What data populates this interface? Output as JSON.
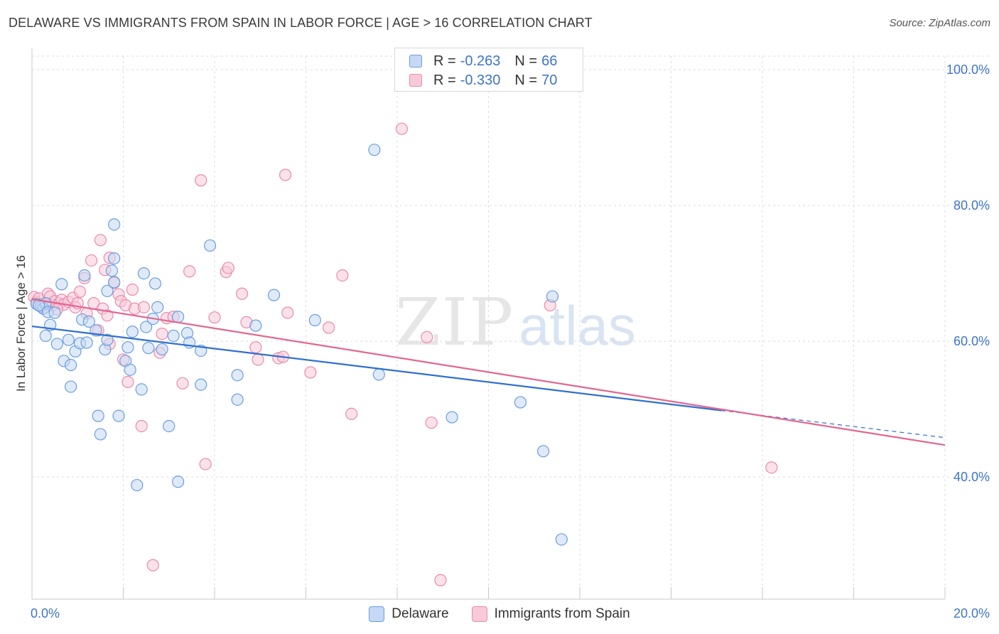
{
  "header": {
    "title": "DELAWARE VS IMMIGRANTS FROM SPAIN IN LABOR FORCE | AGE > 16 CORRELATION CHART",
    "source": "Source: ZipAtlas.com"
  },
  "watermark": {
    "zip": "ZIP",
    "atlas": "atlas"
  },
  "legend_top": {
    "rows": [
      {
        "r_label": "R =",
        "r_value": "-0.263",
        "n_label": "N =",
        "n_value": "66"
      },
      {
        "r_label": "R =",
        "r_value": "-0.330",
        "n_label": "N =",
        "n_value": "70"
      }
    ]
  },
  "legend_bottom": {
    "items": [
      "Delaware",
      "Immigrants from Spain"
    ]
  },
  "colors": {
    "blue_fill": "#c5d9f4",
    "blue_stroke": "#6a9de0",
    "blue_line": "#2f6fd1",
    "pink_fill": "#f8cad9",
    "pink_stroke": "#eb8aab",
    "pink_line": "#e2668f",
    "grid": "#dcdcdc",
    "tick_text": "#3d74c7"
  },
  "chart_data": {
    "type": "scatter",
    "title": "DELAWARE VS IMMIGRANTS FROM SPAIN IN LABOR FORCE | AGE > 16 CORRELATION CHART",
    "xlabel": "",
    "ylabel": "In Labor Force | Age > 16",
    "xlim": [
      0,
      20
    ],
    "ylim": [
      22,
      102
    ],
    "x_tick_labels": [
      "0.0%",
      "20.0%"
    ],
    "y_ticks": [
      40,
      60,
      80,
      100
    ],
    "y_tick_labels": [
      "40.0%",
      "60.0%",
      "80.0%",
      "100.0%"
    ],
    "grid": true,
    "legend": "top-center",
    "series": [
      {
        "name": "Delaware",
        "r": -0.263,
        "n": 66,
        "trend": {
          "x": [
            0,
            15.1
          ],
          "y": [
            62.2,
            49.8
          ]
        },
        "trend_extension": {
          "x": [
            15.1,
            20
          ],
          "y": [
            49.8,
            45.8
          ]
        },
        "points": [
          [
            0.1,
            65.5
          ],
          [
            0.2,
            65.1
          ],
          [
            0.25,
            64.8
          ],
          [
            0.3,
            65.6
          ],
          [
            0.35,
            64.3
          ],
          [
            0.4,
            62.4
          ],
          [
            0.3,
            60.8
          ],
          [
            0.5,
            64.2
          ],
          [
            0.55,
            59.6
          ],
          [
            0.65,
            68.4
          ],
          [
            0.7,
            57.1
          ],
          [
            0.8,
            60.2
          ],
          [
            0.85,
            56.5
          ],
          [
            0.85,
            53.3
          ],
          [
            0.95,
            58.5
          ],
          [
            1.05,
            59.7
          ],
          [
            1.1,
            63.2
          ],
          [
            1.15,
            69.7
          ],
          [
            1.2,
            59.8
          ],
          [
            1.25,
            62.9
          ],
          [
            1.4,
            61.6
          ],
          [
            1.45,
            49.0
          ],
          [
            1.5,
            46.3
          ],
          [
            1.6,
            58.8
          ],
          [
            1.65,
            60.2
          ],
          [
            1.65,
            67.4
          ],
          [
            1.75,
            70.4
          ],
          [
            1.8,
            68.7
          ],
          [
            1.8,
            72.2
          ],
          [
            1.8,
            77.2
          ],
          [
            1.9,
            49.0
          ],
          [
            2.05,
            57.1
          ],
          [
            2.1,
            59.1
          ],
          [
            2.15,
            55.8
          ],
          [
            2.2,
            61.4
          ],
          [
            2.3,
            38.8
          ],
          [
            2.4,
            52.9
          ],
          [
            2.45,
            70.0
          ],
          [
            2.5,
            62.1
          ],
          [
            2.55,
            59.0
          ],
          [
            2.65,
            63.3
          ],
          [
            2.7,
            68.5
          ],
          [
            2.75,
            65.0
          ],
          [
            2.85,
            58.8
          ],
          [
            3.0,
            47.5
          ],
          [
            3.1,
            60.8
          ],
          [
            3.2,
            63.6
          ],
          [
            3.2,
            39.3
          ],
          [
            3.4,
            61.2
          ],
          [
            3.45,
            59.8
          ],
          [
            3.7,
            58.6
          ],
          [
            3.7,
            53.6
          ],
          [
            3.9,
            74.1
          ],
          [
            4.5,
            55.0
          ],
          [
            4.5,
            51.4
          ],
          [
            4.9,
            62.3
          ],
          [
            5.3,
            66.8
          ],
          [
            6.2,
            63.1
          ],
          [
            7.5,
            88.2
          ],
          [
            7.6,
            55.1
          ],
          [
            9.2,
            48.8
          ],
          [
            10.7,
            51.0
          ],
          [
            11.2,
            43.8
          ],
          [
            11.6,
            30.8
          ],
          [
            11.4,
            66.6
          ],
          [
            0.15,
            65.3
          ]
        ]
      },
      {
        "name": "Immigrants from Spain",
        "r": -0.33,
        "n": 70,
        "trend": {
          "x": [
            0,
            20
          ],
          "y": [
            66.2,
            44.7
          ]
        },
        "points": [
          [
            0.05,
            66.5
          ],
          [
            0.1,
            65.8
          ],
          [
            0.15,
            66.3
          ],
          [
            0.2,
            65.2
          ],
          [
            0.25,
            64.9
          ],
          [
            0.3,
            65.5
          ],
          [
            0.35,
            67.0
          ],
          [
            0.4,
            66.6
          ],
          [
            0.45,
            65.3
          ],
          [
            0.5,
            65.9
          ],
          [
            0.6,
            65.6
          ],
          [
            0.65,
            66.1
          ],
          [
            0.7,
            65.4
          ],
          [
            0.8,
            65.8
          ],
          [
            0.9,
            66.4
          ],
          [
            0.95,
            65.0
          ],
          [
            1.0,
            65.6
          ],
          [
            1.05,
            67.3
          ],
          [
            1.15,
            69.3
          ],
          [
            1.2,
            64.1
          ],
          [
            1.3,
            71.9
          ],
          [
            1.35,
            65.6
          ],
          [
            1.45,
            61.6
          ],
          [
            1.5,
            74.9
          ],
          [
            1.55,
            64.8
          ],
          [
            1.6,
            70.5
          ],
          [
            1.65,
            63.8
          ],
          [
            1.7,
            59.6
          ],
          [
            1.7,
            72.3
          ],
          [
            1.8,
            68.6
          ],
          [
            1.9,
            66.9
          ],
          [
            1.95,
            65.9
          ],
          [
            2.0,
            57.3
          ],
          [
            2.05,
            65.3
          ],
          [
            2.1,
            54.0
          ],
          [
            2.2,
            67.6
          ],
          [
            2.25,
            64.8
          ],
          [
            2.4,
            47.5
          ],
          [
            2.45,
            65.0
          ],
          [
            2.65,
            27.0
          ],
          [
            2.8,
            58.3
          ],
          [
            2.85,
            61.1
          ],
          [
            2.95,
            63.4
          ],
          [
            3.1,
            63.6
          ],
          [
            3.3,
            53.8
          ],
          [
            3.45,
            70.3
          ],
          [
            3.7,
            83.7
          ],
          [
            3.8,
            41.9
          ],
          [
            4.0,
            63.5
          ],
          [
            4.25,
            70.2
          ],
          [
            4.3,
            70.8
          ],
          [
            4.6,
            67.0
          ],
          [
            4.7,
            62.8
          ],
          [
            4.9,
            59.1
          ],
          [
            4.95,
            57.3
          ],
          [
            5.4,
            57.5
          ],
          [
            5.5,
            57.7
          ],
          [
            5.55,
            84.5
          ],
          [
            5.6,
            64.2
          ],
          [
            6.1,
            55.4
          ],
          [
            6.5,
            62.0
          ],
          [
            6.8,
            69.7
          ],
          [
            7.0,
            49.3
          ],
          [
            8.1,
            91.3
          ],
          [
            8.65,
            60.6
          ],
          [
            8.75,
            48.0
          ],
          [
            8.95,
            24.8
          ],
          [
            11.35,
            65.3
          ],
          [
            16.2,
            41.4
          ],
          [
            0.55,
            64.7
          ]
        ]
      }
    ]
  }
}
